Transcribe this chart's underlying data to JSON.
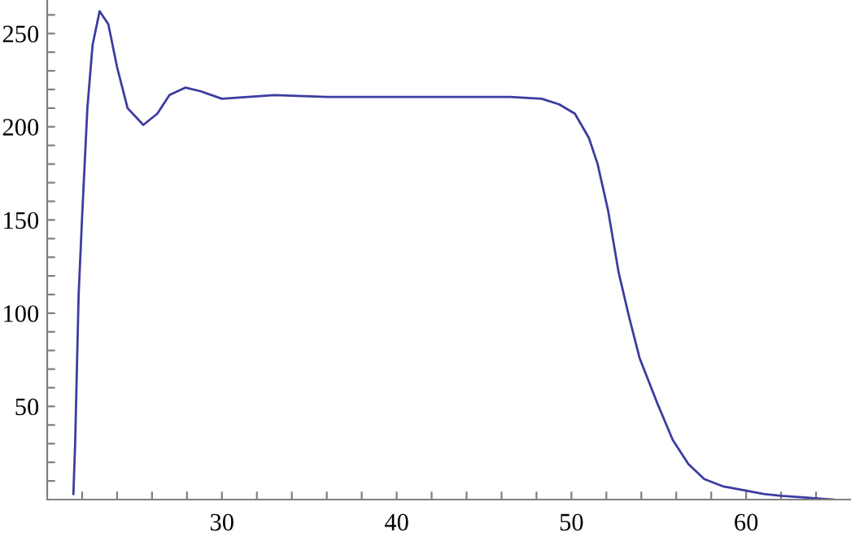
{
  "chart_data": {
    "type": "line",
    "x": [
      21.5,
      21.6,
      21.8,
      22.0,
      22.3,
      22.6,
      23.0,
      23.5,
      24.0,
      24.6,
      25.5,
      26.3,
      27.0,
      27.9,
      28.8,
      30.0,
      31.5,
      33.0,
      36.0,
      40.0,
      44.0,
      46.5,
      48.3,
      49.3,
      50.2,
      51.0,
      51.5,
      52.1,
      52.7,
      53.3,
      53.9,
      54.9,
      55.8,
      56.7,
      57.6,
      58.7,
      59.9,
      61.0,
      62.0,
      63.5,
      65.0
    ],
    "series": [
      {
        "color": "#3c3ca0",
        "values": [
          3,
          30,
          110,
          152,
          210,
          244,
          262,
          255,
          232,
          210,
          201,
          207,
          217,
          221,
          219,
          215,
          216,
          217,
          216,
          216,
          216,
          216,
          215,
          212,
          207,
          194,
          180,
          155,
          122,
          98,
          76,
          52,
          32,
          19,
          11,
          7,
          5,
          3,
          2,
          1,
          0
        ]
      }
    ],
    "xlim": [
      20,
      66
    ],
    "ylim": [
      0,
      268
    ],
    "xticks": [
      {
        "value": 22,
        "label": null
      },
      {
        "value": 24,
        "label": null
      },
      {
        "value": 26,
        "label": null
      },
      {
        "value": 28,
        "label": null
      },
      30,
      {
        "value": 32,
        "label": null
      },
      {
        "value": 34,
        "label": null
      },
      {
        "value": 36,
        "label": null
      },
      {
        "value": 38,
        "label": null
      },
      40,
      {
        "value": 42,
        "label": null
      },
      {
        "value": 44,
        "label": null
      },
      {
        "value": 46,
        "label": null
      },
      {
        "value": 48,
        "label": null
      },
      50,
      {
        "value": 52,
        "label": null
      },
      {
        "value": 54,
        "label": null
      },
      {
        "value": 56,
        "label": null
      },
      {
        "value": 58,
        "label": null
      },
      60,
      {
        "value": 62,
        "label": null
      },
      {
        "value": 64,
        "label": null
      }
    ],
    "yticks": [
      {
        "value": 10,
        "label": null
      },
      {
        "value": 20,
        "label": null
      },
      {
        "value": 30,
        "label": null
      },
      {
        "value": 40,
        "label": null
      },
      50,
      {
        "value": 60,
        "label": null
      },
      {
        "value": 70,
        "label": null
      },
      {
        "value": 80,
        "label": null
      },
      {
        "value": 90,
        "label": null
      },
      100,
      {
        "value": 110,
        "label": null
      },
      {
        "value": 120,
        "label": null
      },
      {
        "value": 130,
        "label": null
      },
      {
        "value": 140,
        "label": null
      },
      150,
      {
        "value": 160,
        "label": null
      },
      {
        "value": 170,
        "label": null
      },
      {
        "value": 180,
        "label": null
      },
      {
        "value": 190,
        "label": null
      },
      200,
      {
        "value": 210,
        "label": null
      },
      {
        "value": 220,
        "label": null
      },
      {
        "value": 230,
        "label": null
      },
      {
        "value": 240,
        "label": null
      },
      250,
      {
        "value": 260,
        "label": null
      }
    ],
    "grid": false,
    "marker": "none",
    "line_style": "solid"
  }
}
